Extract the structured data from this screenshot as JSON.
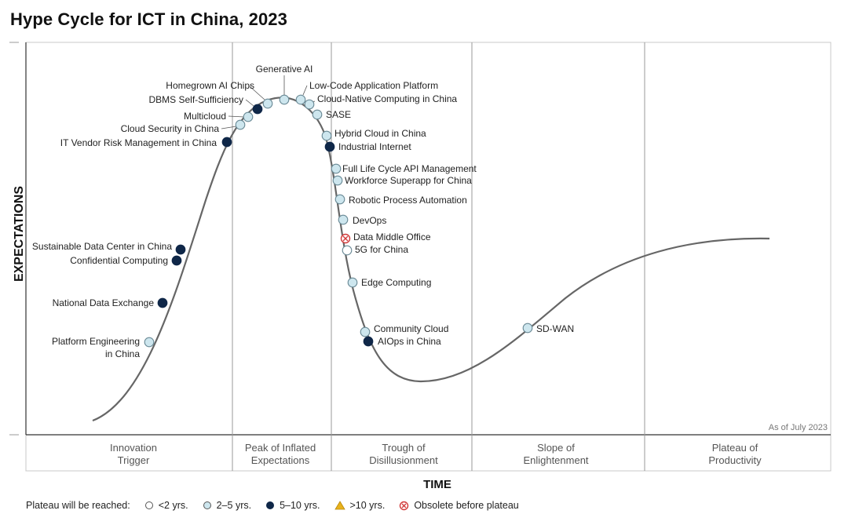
{
  "chart_data": {
    "type": "hype_cycle",
    "title": "Hype Cycle for ICT in China, 2023",
    "xlabel": "TIME",
    "ylabel": "EXPECTATIONS",
    "note": "As of July 2023",
    "phases": [
      {
        "line1": "Innovation",
        "line2": "Trigger"
      },
      {
        "line1": "Peak of Inflated",
        "line2": "Expectations"
      },
      {
        "line1": "Trough of",
        "line2": "Disillusionment"
      },
      {
        "line1": "Slope of",
        "line2": "Enlightenment"
      },
      {
        "line1": "Plateau of",
        "line2": "Productivity"
      }
    ],
    "legend": {
      "label": "Plateau will be reached:",
      "items": [
        {
          "key": "lt2",
          "text": "<2 yrs."
        },
        {
          "key": "2to5",
          "text": "2–5 yrs."
        },
        {
          "key": "5to10",
          "text": "5–10 yrs."
        },
        {
          "key": "gt10",
          "text": ">10 yrs."
        },
        {
          "key": "obsolete",
          "text": "Obsolete before plateau"
        }
      ]
    },
    "colors": {
      "lt2": "#ffffff",
      "2to5": "#cde6ee",
      "5to10": "#0f2748",
      "gt10": "#e8b21c",
      "obsolete": "#d23a3a",
      "curve": "#666666",
      "divider": "#999999"
    },
    "points": [
      {
        "name": "Platform Engineering",
        "name2": "in China",
        "cat": "2to5"
      },
      {
        "name": "National Data Exchange",
        "cat": "5to10"
      },
      {
        "name": "Confidential Computing",
        "cat": "5to10"
      },
      {
        "name": "Sustainable Data Center in China",
        "cat": "5to10"
      },
      {
        "name": "IT Vendor Risk Management in China",
        "cat": "5to10"
      },
      {
        "name": "Cloud Security in China",
        "cat": "2to5"
      },
      {
        "name": "Multicloud",
        "cat": "2to5"
      },
      {
        "name": "DBMS Self-Sufficiency",
        "cat": "5to10"
      },
      {
        "name": "Homegrown AI Chips",
        "cat": "2to5"
      },
      {
        "name": "Generative AI",
        "cat": "2to5"
      },
      {
        "name": "Low-Code Application Platform",
        "cat": "2to5"
      },
      {
        "name": "Cloud-Native Computing in China",
        "cat": "2to5"
      },
      {
        "name": "SASE",
        "cat": "2to5"
      },
      {
        "name": "Hybrid Cloud in China",
        "cat": "2to5"
      },
      {
        "name": "Industrial Internet",
        "cat": "5to10"
      },
      {
        "name": "Full Life Cycle API Management",
        "cat": "2to5"
      },
      {
        "name": "Workforce Superapp for China",
        "cat": "2to5"
      },
      {
        "name": "Robotic Process Automation",
        "cat": "2to5"
      },
      {
        "name": "DevOps",
        "cat": "2to5"
      },
      {
        "name": "Data Middle Office",
        "cat": "obsolete"
      },
      {
        "name": "5G for China",
        "cat": "lt2"
      },
      {
        "name": "Edge Computing",
        "cat": "2to5"
      },
      {
        "name": "Community Cloud",
        "cat": "2to5"
      },
      {
        "name": "AIOps in China",
        "cat": "5to10"
      },
      {
        "name": "SD-WAN",
        "cat": "2to5"
      }
    ]
  }
}
